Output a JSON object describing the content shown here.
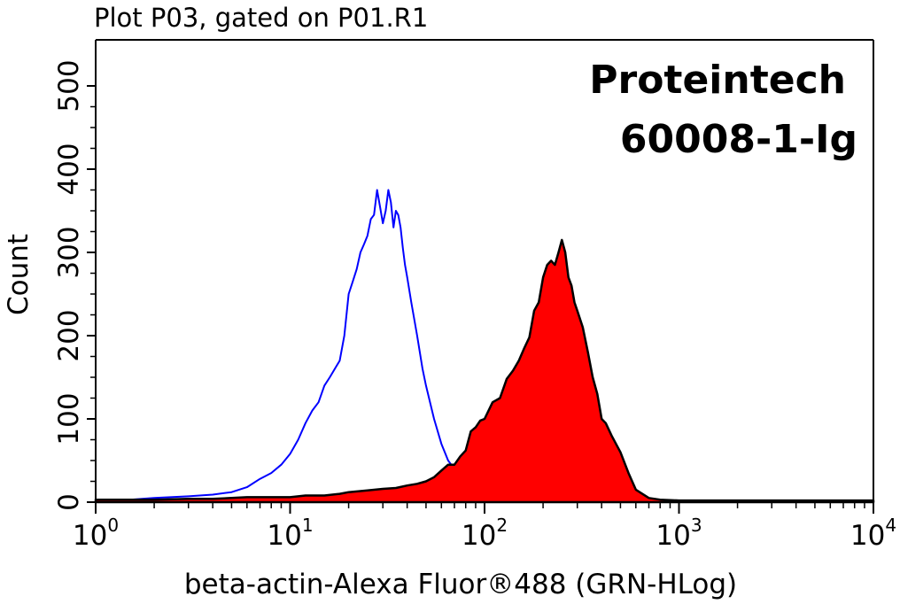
{
  "title": "Plot P03, gated on P01.R1",
  "annotation": {
    "line1": "Proteintech",
    "line2": "60008-1-Ig"
  },
  "colors": {
    "control": "#0000ff",
    "sample_fill": "#ff0000",
    "sample_outline": "#000000",
    "axes": "#000000",
    "background": "#ffffff"
  },
  "chart_data": {
    "type": "area",
    "xlabel": "beta-actin-Alexa Fluor®488 (GRN-HLog)",
    "ylabel": "Count",
    "x_scale": "log",
    "xlim": [
      1,
      10000
    ],
    "ylim": [
      0,
      500
    ],
    "x_ticks": [
      {
        "value": 1,
        "base": "10",
        "exp": "0"
      },
      {
        "value": 10,
        "base": "10",
        "exp": "1"
      },
      {
        "value": 100,
        "base": "10",
        "exp": "2"
      },
      {
        "value": 1000,
        "base": "10",
        "exp": "3"
      },
      {
        "value": 10000,
        "base": "10",
        "exp": "4"
      }
    ],
    "y_ticks": [
      0,
      100,
      200,
      300,
      400,
      500
    ],
    "grid": false,
    "legend": "none",
    "series": [
      {
        "style": "outline",
        "color": "#0000ff",
        "points": [
          [
            1,
            2
          ],
          [
            1.5,
            3
          ],
          [
            2,
            5
          ],
          [
            3,
            7
          ],
          [
            4,
            9
          ],
          [
            5,
            12
          ],
          [
            6,
            18
          ],
          [
            7,
            28
          ],
          [
            8,
            35
          ],
          [
            9,
            45
          ],
          [
            10,
            58
          ],
          [
            11,
            75
          ],
          [
            12,
            95
          ],
          [
            13,
            110
          ],
          [
            14,
            120
          ],
          [
            15,
            140
          ],
          [
            16,
            150
          ],
          [
            18,
            170
          ],
          [
            19,
            200
          ],
          [
            20,
            250
          ],
          [
            21,
            265
          ],
          [
            22,
            280
          ],
          [
            23,
            300
          ],
          [
            24,
            310
          ],
          [
            25,
            320
          ],
          [
            26,
            340
          ],
          [
            27,
            345
          ],
          [
            28,
            375
          ],
          [
            29,
            355
          ],
          [
            30,
            335
          ],
          [
            31,
            350
          ],
          [
            32,
            375
          ],
          [
            33,
            360
          ],
          [
            34,
            330
          ],
          [
            35,
            350
          ],
          [
            36,
            345
          ],
          [
            37,
            330
          ],
          [
            38,
            305
          ],
          [
            39,
            285
          ],
          [
            40,
            270
          ],
          [
            42,
            240
          ],
          [
            45,
            200
          ],
          [
            48,
            160
          ],
          [
            50,
            140
          ],
          [
            55,
            100
          ],
          [
            60,
            70
          ],
          [
            65,
            50
          ],
          [
            70,
            40
          ],
          [
            75,
            30
          ],
          [
            80,
            0
          ]
        ]
      },
      {
        "style": "filled",
        "fill": "#ff0000",
        "outline": "#000000",
        "points": [
          [
            1,
            3
          ],
          [
            2,
            3
          ],
          [
            3,
            4
          ],
          [
            4,
            4
          ],
          [
            5,
            5
          ],
          [
            6,
            6
          ],
          [
            8,
            6
          ],
          [
            10,
            6
          ],
          [
            12,
            8
          ],
          [
            15,
            8
          ],
          [
            18,
            10
          ],
          [
            20,
            12
          ],
          [
            25,
            14
          ],
          [
            30,
            16
          ],
          [
            35,
            17
          ],
          [
            40,
            20
          ],
          [
            45,
            22
          ],
          [
            50,
            25
          ],
          [
            55,
            30
          ],
          [
            60,
            38
          ],
          [
            65,
            45
          ],
          [
            70,
            45
          ],
          [
            75,
            55
          ],
          [
            80,
            62
          ],
          [
            85,
            85
          ],
          [
            90,
            90
          ],
          [
            95,
            98
          ],
          [
            100,
            100
          ],
          [
            110,
            120
          ],
          [
            120,
            125
          ],
          [
            130,
            148
          ],
          [
            140,
            158
          ],
          [
            150,
            170
          ],
          [
            160,
            185
          ],
          [
            170,
            198
          ],
          [
            180,
            230
          ],
          [
            190,
            240
          ],
          [
            200,
            270
          ],
          [
            210,
            285
          ],
          [
            220,
            290
          ],
          [
            230,
            285
          ],
          [
            240,
            300
          ],
          [
            250,
            315
          ],
          [
            260,
            300
          ],
          [
            270,
            270
          ],
          [
            280,
            260
          ],
          [
            290,
            240
          ],
          [
            300,
            230
          ],
          [
            320,
            210
          ],
          [
            340,
            180
          ],
          [
            360,
            150
          ],
          [
            380,
            130
          ],
          [
            400,
            100
          ],
          [
            420,
            95
          ],
          [
            450,
            80
          ],
          [
            500,
            60
          ],
          [
            550,
            35
          ],
          [
            600,
            15
          ],
          [
            700,
            5
          ],
          [
            800,
            3
          ],
          [
            1000,
            2
          ],
          [
            2000,
            2
          ],
          [
            4000,
            2
          ],
          [
            10000,
            2
          ]
        ]
      }
    ]
  }
}
